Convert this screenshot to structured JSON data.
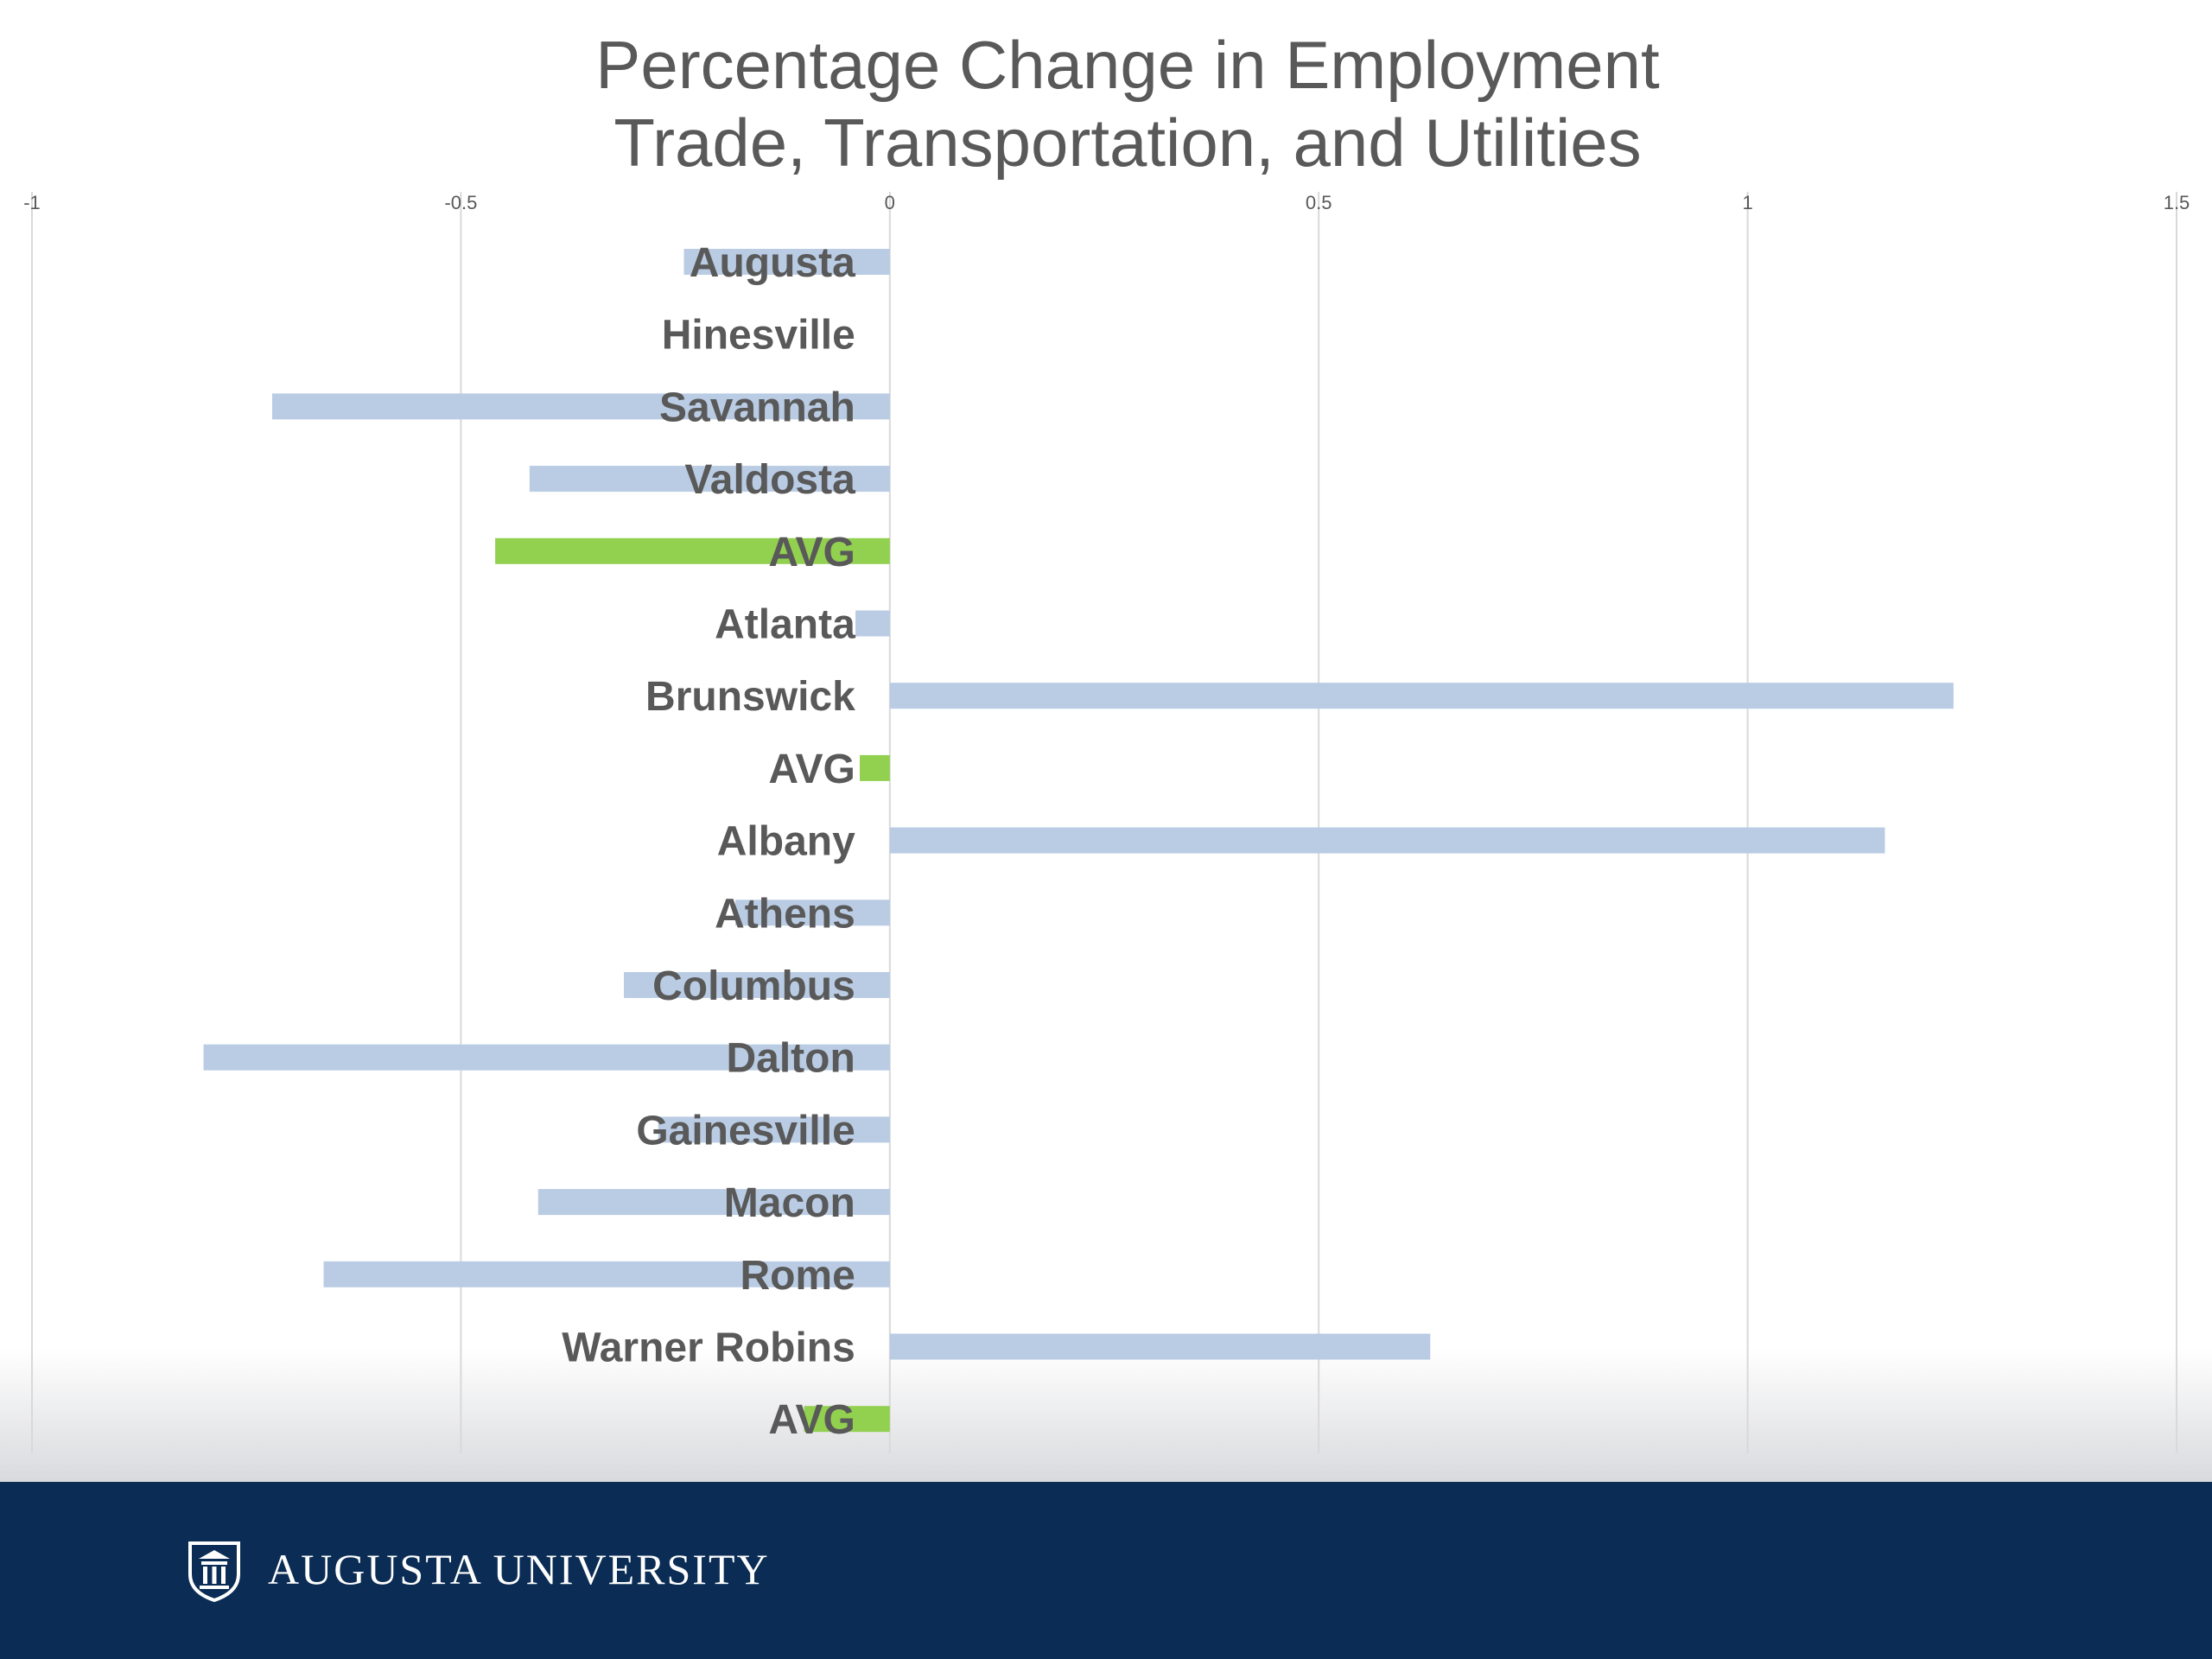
{
  "chart_data": {
    "type": "bar",
    "orientation": "horizontal",
    "title": "Percentage Change in Employment",
    "subtitle": "Trade, Transportation, and Utilities",
    "xlim": [
      -1,
      1.5
    ],
    "ticks": [
      "-1",
      "-0.5",
      "0",
      "0.5",
      "1",
      "1.5"
    ],
    "tick_values": [
      -1,
      -0.5,
      0,
      0.5,
      1,
      1.5
    ],
    "grid": true,
    "categories": [
      "Augusta",
      "Hinesville",
      "Savannah",
      "Valdosta",
      "AVG",
      "Atlanta",
      "Brunswick",
      "AVG",
      "Albany",
      "Athens",
      "Columbus",
      "Dalton",
      "Gainesville",
      "Macon",
      "Rome",
      "Warner Robins",
      "AVG"
    ],
    "values": [
      -0.24,
      0.0,
      -0.72,
      -0.42,
      -0.46,
      -0.04,
      1.24,
      -0.035,
      1.16,
      -0.18,
      -0.31,
      -0.8,
      -0.27,
      -0.41,
      -0.66,
      0.63,
      -0.1
    ],
    "bar_kind": [
      "city",
      "city",
      "city",
      "city",
      "avg",
      "city",
      "city",
      "avg",
      "city",
      "city",
      "city",
      "city",
      "city",
      "city",
      "city",
      "city",
      "avg"
    ]
  },
  "colors": {
    "city_bar": "#b9cce4",
    "avg_bar": "#92d050",
    "grid": "#d9d9d9",
    "label": "#595959",
    "tick": "#595959",
    "footer": "#0b2d55"
  },
  "footer": {
    "logo_icon": "university-seal-icon",
    "logo_text": "AUGUSTA UNIVERSITY"
  }
}
